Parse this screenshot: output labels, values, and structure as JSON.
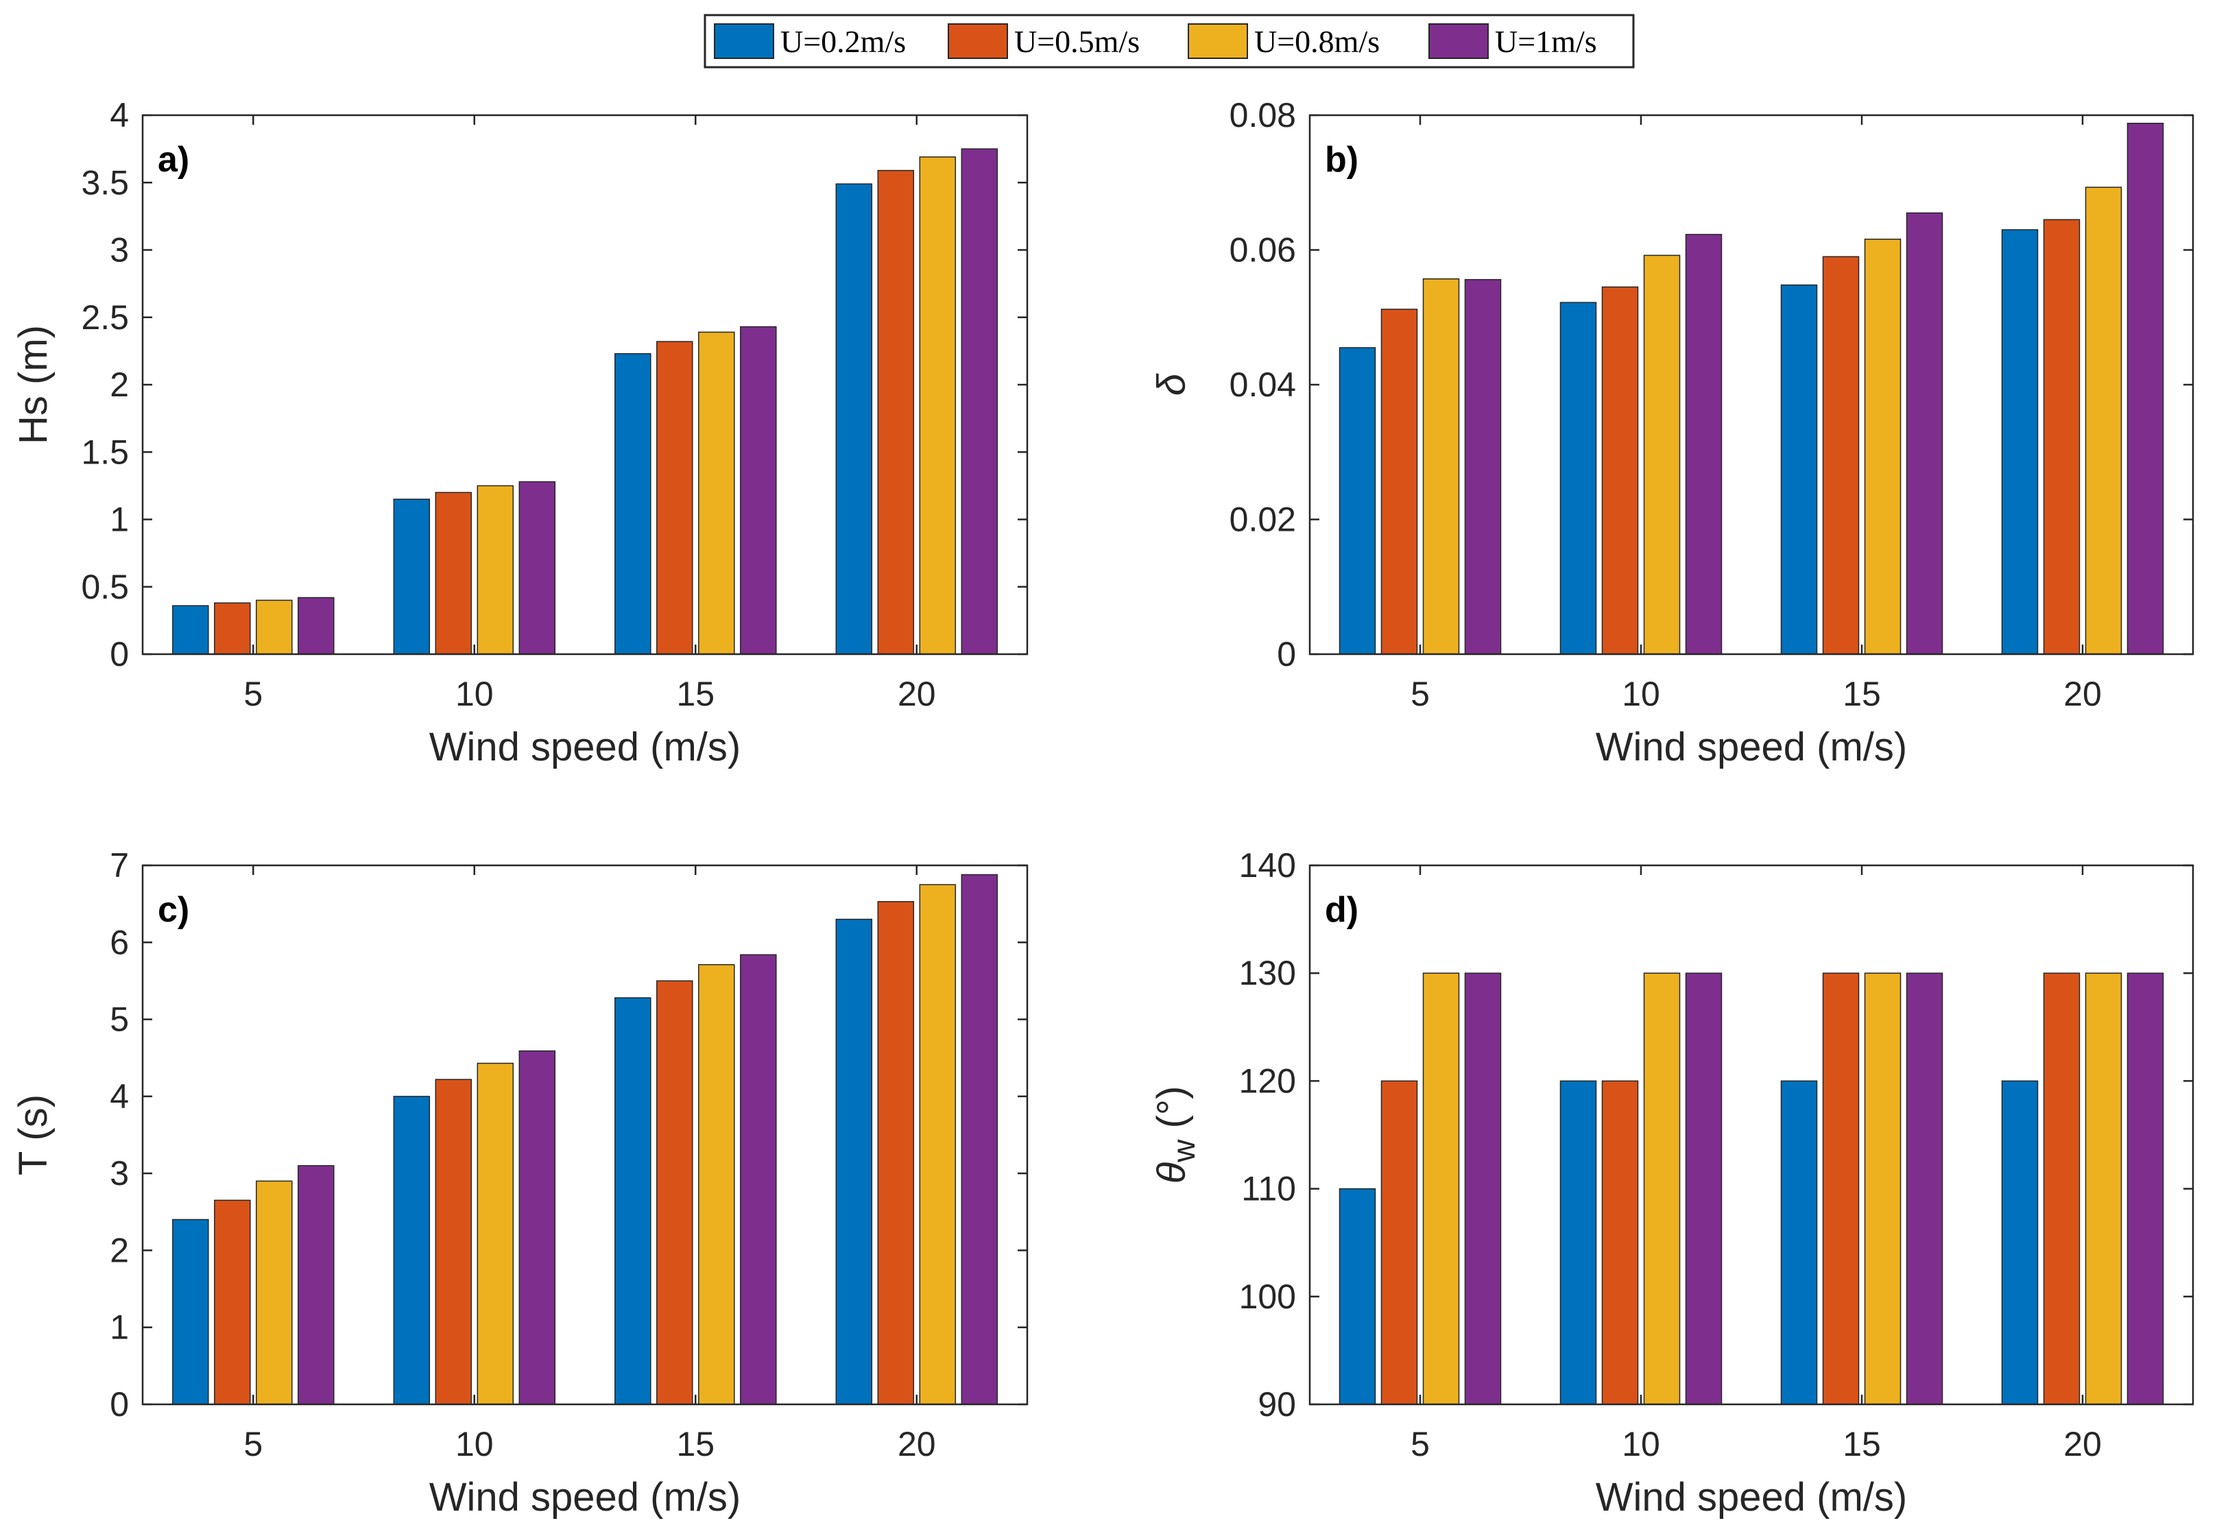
{
  "legend": {
    "entries": [
      {
        "label": "U=0.2m/s",
        "color": "#0072BD"
      },
      {
        "label": "U=0.5m/s",
        "color": "#D95319"
      },
      {
        "label": "U=0.8m/s",
        "color": "#EDB120"
      },
      {
        "label": "U=1m/s",
        "color": "#7E2F8E"
      }
    ]
  },
  "chart_data": [
    {
      "id": "a",
      "panel_label": "a)",
      "type": "bar",
      "categories": [
        "5",
        "10",
        "15",
        "20"
      ],
      "xlabel": "Wind speed (m/s)",
      "ylabel": "Hs (m)",
      "ylim": [
        0,
        4
      ],
      "yticks": [
        0,
        0.5,
        1,
        1.5,
        2,
        2.5,
        3,
        3.5,
        4
      ],
      "ytick_labels": [
        "0",
        "0.5",
        "1",
        "1.5",
        "2",
        "2.5",
        "3",
        "3.5",
        "4"
      ],
      "grid": false,
      "series": [
        {
          "name": "U=0.2m/s",
          "values": [
            0.36,
            1.15,
            2.23,
            3.49
          ]
        },
        {
          "name": "U=0.5m/s",
          "values": [
            0.38,
            1.2,
            2.32,
            3.59
          ]
        },
        {
          "name": "U=0.8m/s",
          "values": [
            0.4,
            1.25,
            2.39,
            3.69
          ]
        },
        {
          "name": "U=1m/s",
          "values": [
            0.42,
            1.28,
            2.43,
            3.75
          ]
        }
      ]
    },
    {
      "id": "b",
      "panel_label": "b)",
      "type": "bar",
      "categories": [
        "5",
        "10",
        "15",
        "20"
      ],
      "xlabel": "Wind speed (m/s)",
      "ylabel": "δ",
      "ylim": [
        0,
        0.08
      ],
      "yticks": [
        0,
        0.02,
        0.04,
        0.06,
        0.08
      ],
      "ytick_labels": [
        "0",
        "0.02",
        "0.04",
        "0.06",
        "0.08"
      ],
      "grid": false,
      "series": [
        {
          "name": "U=0.2m/s",
          "values": [
            0.0455,
            0.0522,
            0.0548,
            0.063
          ]
        },
        {
          "name": "U=0.5m/s",
          "values": [
            0.0512,
            0.0545,
            0.059,
            0.0645
          ]
        },
        {
          "name": "U=0.8m/s",
          "values": [
            0.0557,
            0.0592,
            0.0616,
            0.0693
          ]
        },
        {
          "name": "U=1m/s",
          "values": [
            0.0556,
            0.0623,
            0.0655,
            0.0788
          ]
        }
      ]
    },
    {
      "id": "c",
      "panel_label": "c)",
      "type": "bar",
      "categories": [
        "5",
        "10",
        "15",
        "20"
      ],
      "xlabel": "Wind speed (m/s)",
      "ylabel": "T (s)",
      "ylim": [
        0,
        7
      ],
      "yticks": [
        0,
        1,
        2,
        3,
        4,
        5,
        6,
        7
      ],
      "ytick_labels": [
        "0",
        "1",
        "2",
        "3",
        "4",
        "5",
        "6",
        "7"
      ],
      "grid": false,
      "series": [
        {
          "name": "U=0.2m/s",
          "values": [
            2.4,
            4.0,
            5.28,
            6.3
          ]
        },
        {
          "name": "U=0.5m/s",
          "values": [
            2.65,
            4.22,
            5.5,
            6.53
          ]
        },
        {
          "name": "U=0.8m/s",
          "values": [
            2.9,
            4.43,
            5.71,
            6.75
          ]
        },
        {
          "name": "U=1m/s",
          "values": [
            3.1,
            4.59,
            5.84,
            6.88
          ]
        }
      ]
    },
    {
      "id": "d",
      "panel_label": "d)",
      "type": "bar",
      "categories": [
        "5",
        "10",
        "15",
        "20"
      ],
      "xlabel": "Wind speed (m/s)",
      "ylabel": "θw (°)",
      "ylabel_parts": {
        "symbol": "θ",
        "subscript": "w",
        "unit": "(°)"
      },
      "ylim": [
        90,
        140
      ],
      "yticks": [
        90,
        100,
        110,
        120,
        130,
        140
      ],
      "ytick_labels": [
        "90",
        "100",
        "110",
        "120",
        "130",
        "140"
      ],
      "grid": false,
      "series": [
        {
          "name": "U=0.2m/s",
          "values": [
            110,
            120,
            120,
            120
          ]
        },
        {
          "name": "U=0.5m/s",
          "values": [
            120,
            120,
            130,
            130
          ]
        },
        {
          "name": "U=0.8m/s",
          "values": [
            130,
            130,
            130,
            130
          ]
        },
        {
          "name": "U=1m/s",
          "values": [
            130,
            130,
            130,
            130
          ]
        }
      ]
    }
  ]
}
